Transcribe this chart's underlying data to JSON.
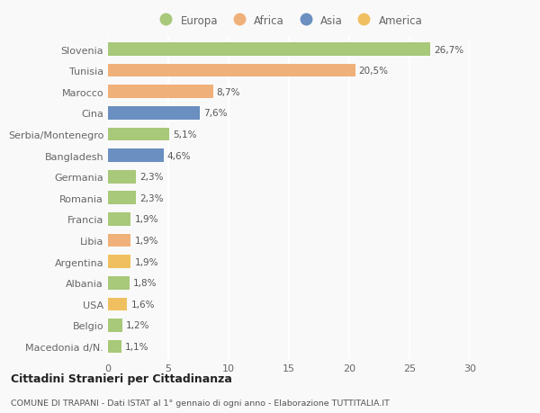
{
  "categories": [
    "Slovenia",
    "Tunisia",
    "Marocco",
    "Cina",
    "Serbia/Montenegro",
    "Bangladesh",
    "Germania",
    "Romania",
    "Francia",
    "Libia",
    "Argentina",
    "Albania",
    "USA",
    "Belgio",
    "Macedonia d/N."
  ],
  "values": [
    26.7,
    20.5,
    8.7,
    7.6,
    5.1,
    4.6,
    2.3,
    2.3,
    1.9,
    1.9,
    1.9,
    1.8,
    1.6,
    1.2,
    1.1
  ],
  "labels": [
    "26,7%",
    "20,5%",
    "8,7%",
    "7,6%",
    "5,1%",
    "4,6%",
    "2,3%",
    "2,3%",
    "1,9%",
    "1,9%",
    "1,9%",
    "1,8%",
    "1,6%",
    "1,2%",
    "1,1%"
  ],
  "colors": [
    "#a8c87a",
    "#f0b07a",
    "#f0b07a",
    "#6a8fc0",
    "#a8c87a",
    "#6a8fc0",
    "#a8c87a",
    "#a8c87a",
    "#a8c87a",
    "#f0b07a",
    "#f0c060",
    "#a8c87a",
    "#f0c060",
    "#a8c87a",
    "#a8c87a"
  ],
  "legend_labels": [
    "Europa",
    "Africa",
    "Asia",
    "America"
  ],
  "legend_colors": [
    "#a8c87a",
    "#f0b07a",
    "#6a8fc0",
    "#f0c060"
  ],
  "xlim": [
    0,
    30
  ],
  "xticks": [
    0,
    5,
    10,
    15,
    20,
    25,
    30
  ],
  "title": "Cittadini Stranieri per Cittadinanza",
  "subtitle": "COMUNE DI TRAPANI - Dati ISTAT al 1° gennaio di ogni anno - Elaborazione TUTTITALIA.IT",
  "bg_color": "#f9f9f9",
  "grid_color": "#ffffff",
  "bar_label_color": "#555555",
  "tick_label_color": "#666666"
}
